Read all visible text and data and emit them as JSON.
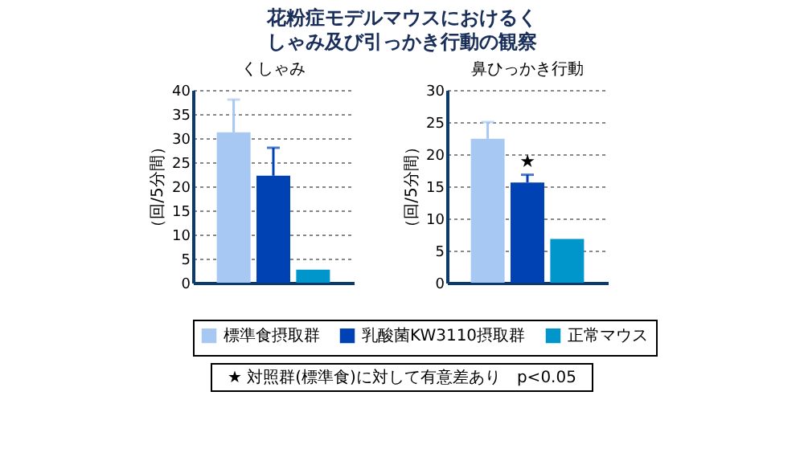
{
  "chart_data": [
    {
      "type": "other",
      "title": "花粉症モデルマウスにおけるくしゃみ及び引っかき行動の観察"
    },
    {
      "type": "bar",
      "subtitle": "くしゃみ",
      "ylabel": "（回/5分間）",
      "categories": [
        null,
        null,
        null
      ],
      "series": [
        {
          "name": "標準食摂取群",
          "color": "#a6c8f2",
          "values": [
            31.2,
            null,
            null
          ],
          "errors": [
            [
              31.2,
              38
            ],
            null,
            null
          ]
        },
        {
          "name": "乳酸菌KW3110摂取群",
          "color": "#0042b4",
          "values": [
            null,
            22.2,
            null
          ],
          "errors": [
            null,
            [
              22.2,
              28
            ],
            null
          ]
        },
        {
          "name": "正常マウス",
          "color": "#0096cc",
          "values": [
            null,
            null,
            2.7
          ]
        }
      ],
      "ylim": [
        0,
        40
      ],
      "yticks": [
        0,
        5,
        10,
        15,
        20,
        25,
        30,
        35,
        40
      ],
      "grid": "y",
      "legend": "bottom"
    },
    {
      "type": "bar",
      "subtitle": "鼻ひっかき行動",
      "ylabel": "（回/5分間）",
      "categories": [
        null,
        null,
        null
      ],
      "series": [
        {
          "name": "標準食摂取群",
          "color": "#a6c8f2",
          "values": [
            22.4,
            null,
            null
          ],
          "errors": [
            [
              22.4,
              25
            ],
            null,
            null
          ]
        },
        {
          "name": "乳酸菌KW3110摂取群",
          "color": "#0042b4",
          "values": [
            null,
            15.6,
            null
          ],
          "errors": [
            null,
            [
              15.6,
              16.8
            ],
            null
          ],
          "value_labels": [
            null,
            "★",
            null
          ]
        },
        {
          "name": "正常マウス",
          "color": "#0096cc",
          "values": [
            null,
            null,
            6.8
          ]
        }
      ],
      "ylim": [
        0,
        30
      ],
      "yticks": [
        0,
        5,
        10,
        15,
        20,
        25,
        30
      ],
      "grid": "y",
      "annotations": [
        "★ 対照群(標準食)に対して有意差あり　p<0.05"
      ]
    }
  ]
}
